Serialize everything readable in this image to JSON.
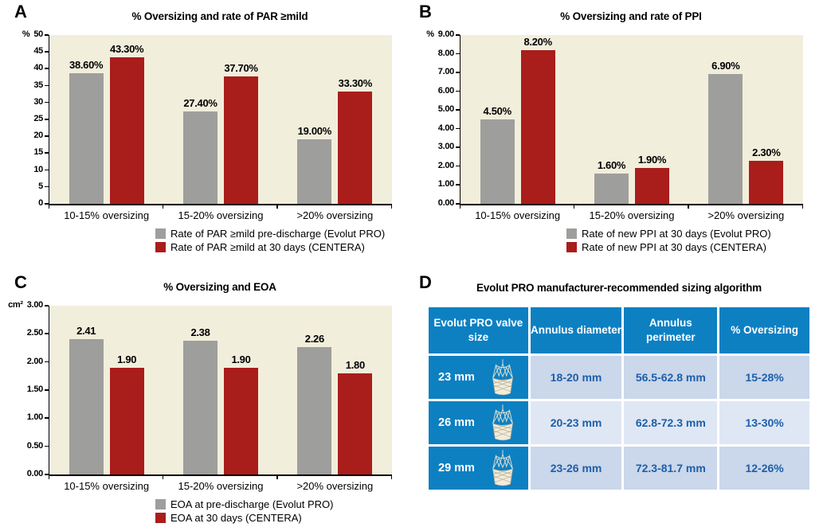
{
  "colors": {
    "bar_gray": "#9e9e9c",
    "bar_red": "#a91d1b",
    "plot_bg": "#f2eedc",
    "axis": "#000000",
    "table_header_blue": "#0d80c2",
    "table_row_dark": "#cbd7ea",
    "table_row_light": "#dfe7f4",
    "table_text_blue": "#1c5fa9"
  },
  "chart_data": [
    {
      "type": "bar",
      "panel": "A",
      "title": "% Oversizing and rate of PAR ≥mild",
      "unit": "%",
      "categories": [
        "10-15% oversizing",
        "15-20% oversizing",
        ">20% oversizing"
      ],
      "series": [
        {
          "name": "Rate of PAR ≥mild pre-discharge (Evolut PRO)",
          "color": "#9e9e9c",
          "values": [
            38.6,
            27.4,
            19.0
          ],
          "labels": [
            "38.60%",
            "27.40%",
            "19.00%"
          ]
        },
        {
          "name": "Rate of PAR ≥mild at 30 days (CENTERA)",
          "color": "#a91d1b",
          "values": [
            43.3,
            37.7,
            33.3
          ],
          "labels": [
            "43.30%",
            "37.70%",
            "33.30%"
          ]
        }
      ],
      "ylim": [
        0,
        50
      ],
      "yticks": [
        "50",
        "45",
        "40",
        "35",
        "30",
        "25",
        "20",
        "15",
        "10",
        "5",
        "0"
      ],
      "grid": false,
      "legend_position": "bottom"
    },
    {
      "type": "bar",
      "panel": "B",
      "title": "% Oversizing and rate of PPI",
      "unit": "%",
      "categories": [
        "10-15% oversizing",
        "15-20% oversizing",
        ">20% oversizing"
      ],
      "series": [
        {
          "name": "Rate of new PPI at 30 days (Evolut PRO)",
          "color": "#9e9e9c",
          "values": [
            4.5,
            1.6,
            6.9
          ],
          "labels": [
            "4.50%",
            "1.60%",
            "6.90%"
          ]
        },
        {
          "name": "Rate of new PPI at 30 days (CENTERA)",
          "color": "#a91d1b",
          "values": [
            8.2,
            1.9,
            2.3
          ],
          "labels": [
            "8.20%",
            "1.90%",
            "2.30%"
          ]
        }
      ],
      "ylim": [
        0,
        9
      ],
      "yticks": [
        "9.00",
        "8.00",
        "7.00",
        "6.00",
        "5.00",
        "4.00",
        "3.00",
        "2.00",
        "1.00",
        "0.00"
      ],
      "grid": false,
      "legend_position": "bottom"
    },
    {
      "type": "bar",
      "panel": "C",
      "title": "% Oversizing and EOA",
      "unit": "cm²",
      "categories": [
        "10-15% oversizing",
        "15-20% oversizing",
        ">20% oversizing"
      ],
      "series": [
        {
          "name": "EOA at pre-discharge (Evolut PRO)",
          "color": "#9e9e9c",
          "values": [
            2.41,
            2.38,
            2.26
          ],
          "labels": [
            "2.41",
            "2.38",
            "2.26"
          ]
        },
        {
          "name": "EOA at  30 days (CENTERA)",
          "color": "#a91d1b",
          "values": [
            1.9,
            1.9,
            1.8
          ],
          "labels": [
            "1.90",
            "1.90",
            "1.80"
          ]
        }
      ],
      "ylim": [
        0,
        3
      ],
      "yticks": [
        "3.00",
        "2.50",
        "2.00",
        "1.50",
        "1.00",
        "0.50",
        "0.00"
      ],
      "grid": false,
      "legend_position": "bottom"
    }
  ],
  "table": {
    "panel": "D",
    "title": "Evolut PRO manufacturer-recommended sizing algorithm",
    "headers": [
      "Evolut PRO valve size",
      "Annulus diameter",
      "Annulus perimeter",
      "% Oversizing"
    ],
    "rows": [
      {
        "valve_size": "23 mm",
        "annulus_diameter": "18-20 mm",
        "annulus_perimeter": "56.5-62.8 mm",
        "oversizing": "15-28%"
      },
      {
        "valve_size": "26 mm",
        "annulus_diameter": "20-23 mm",
        "annulus_perimeter": "62.8-72.3 mm",
        "oversizing": "13-30%"
      },
      {
        "valve_size": "29 mm",
        "annulus_diameter": "23-26 mm",
        "annulus_perimeter": "72.3-81.7 mm",
        "oversizing": "12-26%"
      }
    ]
  }
}
